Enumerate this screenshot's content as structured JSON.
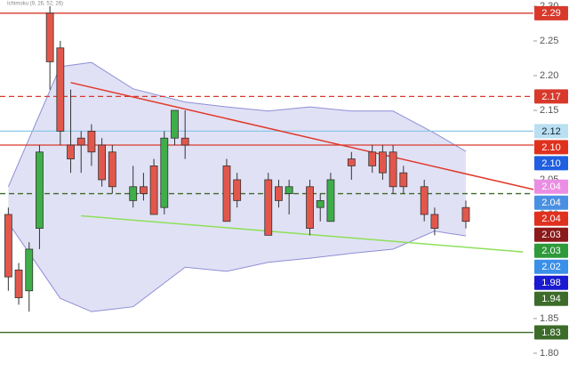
{
  "chart_data": {
    "type": "candlestick",
    "indicator_label": "Ichimoku (9, 26, 52, 26)",
    "xlim": [
      -0.8,
      50.5
    ],
    "ylim": [
      1.773,
      2.309
    ],
    "yticks": [
      {
        "value": 2.3,
        "label": "2.30"
      },
      2.25,
      {
        "value": 2.2,
        "label": "2.20"
      },
      2.15,
      {
        "value": 2.1,
        "label": "2.10"
      },
      2.05,
      {
        "value": 2.0,
        "label": "2.00"
      },
      1.95,
      {
        "value": 1.9,
        "label": "1.90"
      },
      1.85,
      {
        "value": 1.8,
        "label": "1.80"
      }
    ],
    "up_color": "#3fae49",
    "down_color": "#e2574c",
    "x": [
      0,
      1,
      2,
      3,
      4,
      5,
      6,
      7,
      8,
      9,
      10,
      12,
      13,
      14,
      15,
      16,
      17,
      21,
      22,
      25,
      26,
      27,
      29,
      30,
      31,
      33,
      35,
      36,
      37,
      38,
      40,
      41,
      44
    ],
    "open": [
      2.0,
      1.92,
      1.89,
      1.98,
      2.29,
      2.24,
      2.1,
      2.11,
      2.12,
      2.1,
      2.09,
      2.02,
      2.04,
      2.07,
      2.01,
      2.11,
      2.11,
      2.07,
      2.05,
      2.05,
      2.04,
      2.03,
      2.04,
      2.01,
      1.99,
      2.08,
      2.09,
      2.09,
      2.09,
      2.06,
      2.04,
      2.0,
      2.01
    ],
    "high": [
      2.01,
      1.93,
      1.96,
      2.1,
      2.3,
      2.25,
      2.18,
      2.12,
      2.13,
      2.11,
      2.1,
      2.07,
      2.06,
      2.08,
      2.12,
      2.15,
      2.15,
      2.08,
      2.06,
      2.06,
      2.05,
      2.05,
      2.05,
      2.03,
      2.06,
      2.09,
      2.1,
      2.1,
      2.1,
      2.07,
      2.05,
      2.01,
      2.02
    ],
    "low": [
      1.89,
      1.87,
      1.86,
      1.95,
      2.18,
      2.1,
      2.06,
      2.06,
      2.07,
      2.04,
      2.03,
      2.01,
      2.02,
      2.0,
      2.0,
      2.1,
      2.08,
      1.99,
      2.01,
      1.97,
      2.01,
      2.0,
      1.97,
      1.99,
      1.99,
      2.05,
      2.06,
      2.05,
      2.03,
      2.03,
      1.99,
      1.97,
      1.98
    ],
    "close": [
      1.91,
      1.88,
      1.95,
      2.09,
      2.22,
      2.12,
      2.08,
      2.1,
      2.09,
      2.05,
      2.04,
      2.04,
      2.03,
      2.0,
      2.11,
      2.15,
      2.1,
      1.99,
      2.02,
      1.97,
      2.02,
      2.04,
      1.98,
      2.02,
      2.05,
      2.07,
      2.07,
      2.06,
      2.04,
      2.04,
      2.0,
      1.98,
      1.99
    ],
    "band": {
      "color": "#c9c8ec",
      "x": [
        0,
        5,
        8,
        12,
        17,
        21,
        25,
        29,
        33,
        37,
        41,
        44
      ],
      "upper": [
        2.04,
        2.213,
        2.219,
        2.181,
        2.162,
        2.155,
        2.149,
        2.155,
        2.149,
        2.149,
        2.117,
        2.091
      ],
      "lower": [
        1.988,
        1.879,
        1.86,
        1.867,
        1.924,
        1.918,
        1.931,
        1.937,
        1.944,
        1.95,
        1.976,
        1.969
      ]
    },
    "levels": [
      {
        "value": 2.29,
        "color": "#d8392b",
        "dashed": false
      },
      {
        "value": 2.17,
        "color": "#d8392b",
        "dashed": true
      },
      {
        "value": 2.12,
        "color": "#8cc8e8",
        "dashed": false
      },
      {
        "value": 2.1,
        "color": "#d8392b",
        "dashed": false
      },
      {
        "value": 2.03,
        "color": "#3d6b2a",
        "dashed": true
      },
      {
        "value": 1.83,
        "color": "#3d6b2a",
        "dashed": false
      }
    ],
    "trendlines": [
      {
        "color": "#e0392b",
        "x": [
          6,
          50.5
        ],
        "values": [
          2.19,
          2.036
        ]
      },
      {
        "color": "#8ee05a",
        "x": [
          7,
          49.5
        ],
        "values": [
          1.998,
          1.946
        ]
      }
    ],
    "price_tags": [
      {
        "value": 2.29,
        "color": "#d8392b"
      },
      {
        "value": 2.17,
        "color": "#d8392b"
      },
      {
        "value": 2.12,
        "label": "2.12",
        "color": "#b9dff0"
      },
      {
        "value": 2.1,
        "label": "2.10",
        "color": "#e0301e"
      },
      {
        "value": 2.1,
        "label": "2.10",
        "color": "#1f5fe0"
      },
      {
        "value": 2.04,
        "color": "#ea8ee3"
      },
      {
        "value": 2.04,
        "color": "#4a90e2"
      },
      {
        "value": 2.04,
        "color": "#e0301e"
      },
      {
        "value": 2.03,
        "color": "#8b1a1a"
      },
      {
        "value": 2.03,
        "color": "#2e9a3a"
      },
      {
        "value": 2.02,
        "color": "#3a8fe8"
      },
      {
        "value": 1.98,
        "color": "#1a1ad0"
      },
      {
        "value": 1.94,
        "color": "#3d6b2a"
      },
      {
        "value": 1.83,
        "color": "#3d6b2a"
      }
    ]
  }
}
